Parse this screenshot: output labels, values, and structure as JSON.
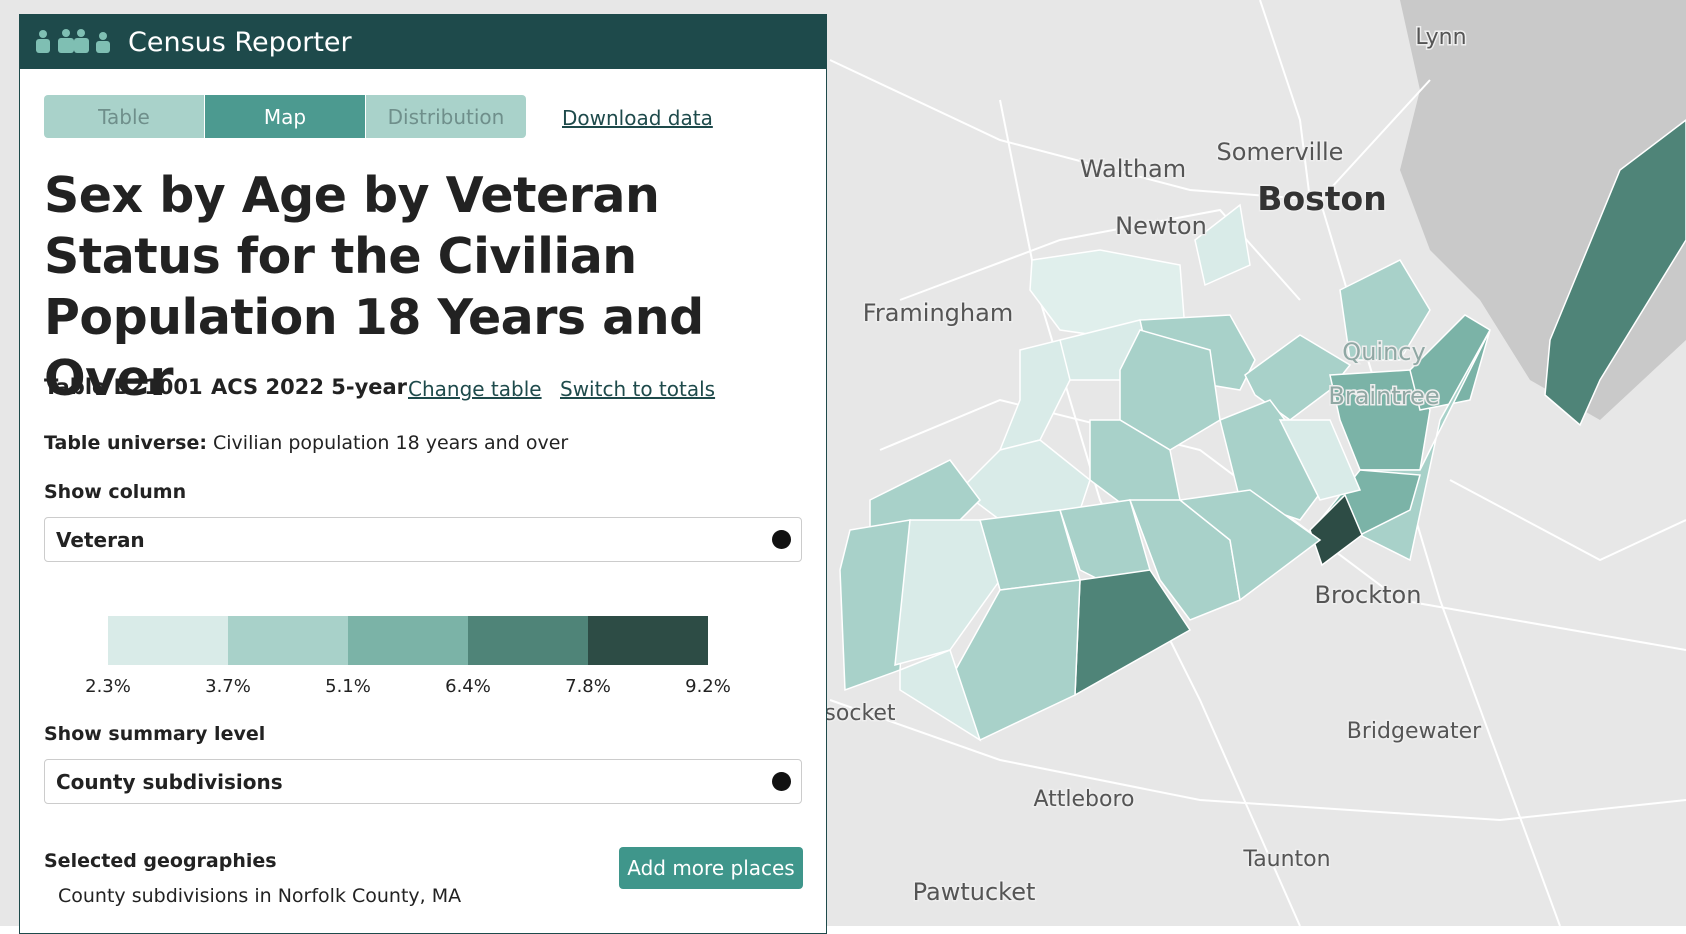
{
  "header": {
    "title": "Census Reporter"
  },
  "tabs": [
    "Table",
    "Map",
    "Distribution"
  ],
  "download_link": "Download data",
  "title": "Sex by Age by Veteran Status for the Civilian Population 18 Years and Over",
  "table_id": "Table B21001",
  "release": "ACS 2022 5-year",
  "links": [
    "Change table",
    "Switch to totals"
  ],
  "universe": {
    "label": "Table universe:",
    "text": "Civilian population 18 years and over"
  },
  "show_column": {
    "label": "Show column",
    "value": "Veteran"
  },
  "legend": {
    "colors": [
      "#d9ebe8",
      "#a8d1c9",
      "#7bb3a7",
      "#4f8478",
      "#2d4c45"
    ],
    "labels": [
      "2.3%",
      "3.7%",
      "5.1%",
      "6.4%",
      "7.8%",
      "9.2%"
    ]
  },
  "summary_level": {
    "label": "Show summary level",
    "value": "County subdivisions"
  },
  "selected": {
    "label": "Selected geographies",
    "button": "Add more places",
    "text": "County subdivisions in Norfolk County, MA"
  },
  "map": {
    "labels": [
      "Lynn",
      "Somerville",
      "Waltham",
      "Boston",
      "Newton",
      "Framingham",
      "Quincy",
      "Braintree",
      "Brockton",
      "socket",
      "Bridgewater",
      "Attleboro",
      "Taunton",
      "Pawtucket"
    ]
  }
}
